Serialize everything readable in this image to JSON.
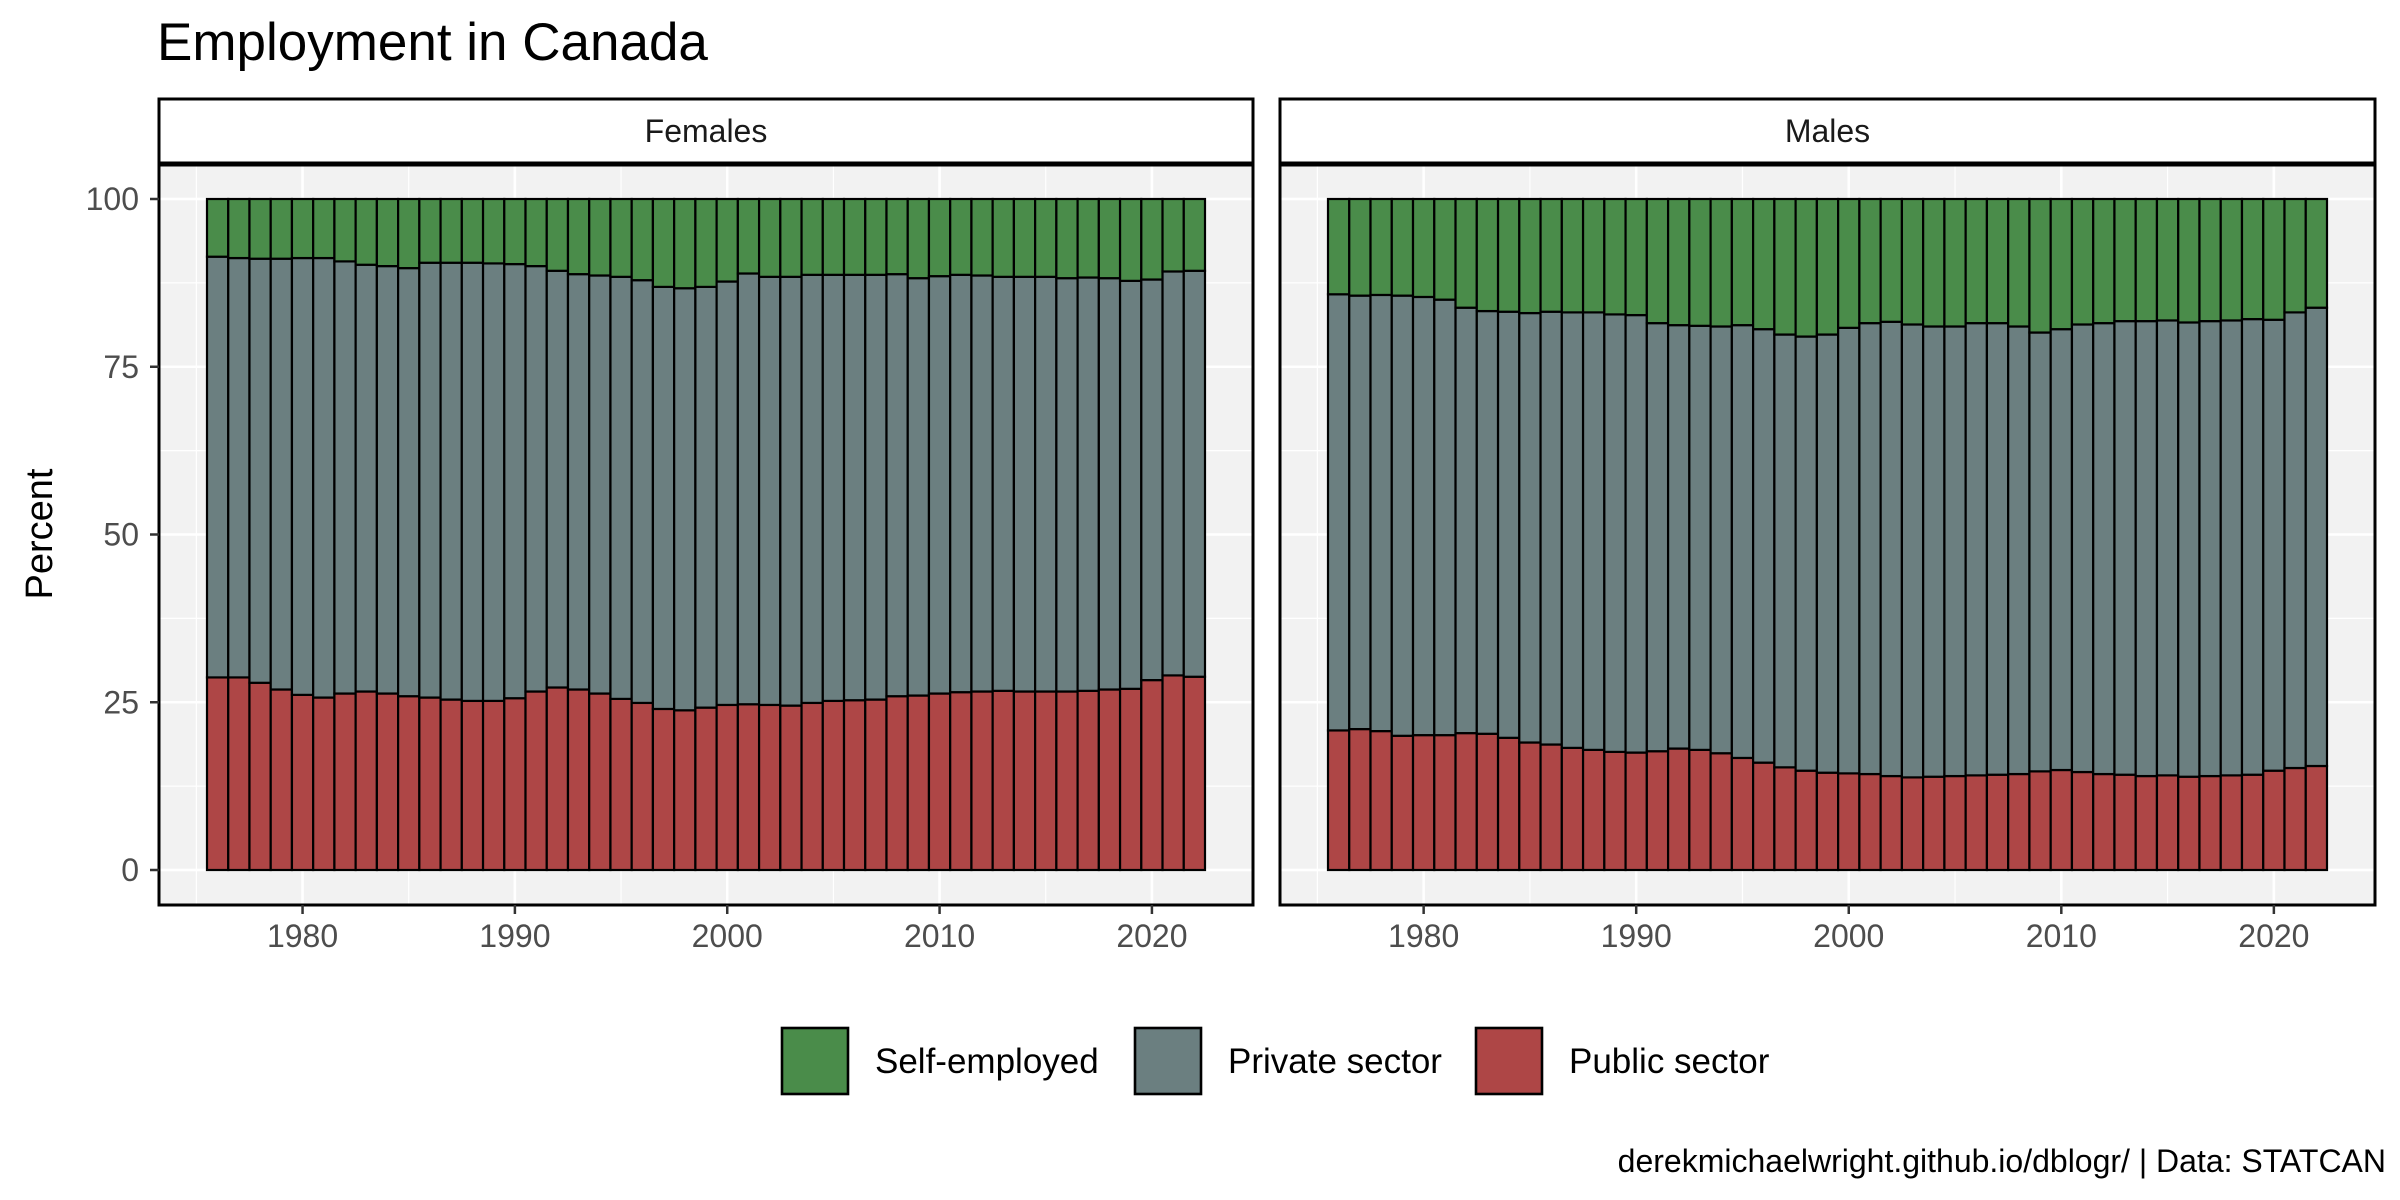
{
  "title": "Employment in Canada",
  "caption": "derekmichaelwright.github.io/dblogr/ | Data: STATCAN",
  "chart_data": {
    "type": "bar",
    "stacked": true,
    "title": "Employment in Canada",
    "xlabel": "",
    "ylabel": "Percent",
    "ylim": [
      0,
      100
    ],
    "yticks": [
      0,
      25,
      50,
      75,
      100
    ],
    "xlim": [
      1976,
      2022
    ],
    "xticks": [
      1980,
      1990,
      2000,
      2010,
      2020
    ],
    "grid": true,
    "legend_position": "bottom",
    "years": [
      1976,
      1977,
      1978,
      1979,
      1980,
      1981,
      1982,
      1983,
      1984,
      1985,
      1986,
      1987,
      1988,
      1989,
      1990,
      1991,
      1992,
      1993,
      1994,
      1995,
      1996,
      1997,
      1998,
      1999,
      2000,
      2001,
      2002,
      2003,
      2004,
      2005,
      2006,
      2007,
      2008,
      2009,
      2010,
      2011,
      2012,
      2013,
      2014,
      2015,
      2016,
      2017,
      2018,
      2019,
      2020,
      2021,
      2022
    ],
    "stack_order": [
      "Public sector",
      "Private sector",
      "Self-employed"
    ],
    "legend": [
      {
        "name": "Self-employed",
        "color": "#4a8c4a"
      },
      {
        "name": "Private sector",
        "color": "#6b7f80"
      },
      {
        "name": "Public sector",
        "color": "#ae4646"
      }
    ],
    "panels": [
      {
        "name": "Females",
        "series": [
          {
            "name": "Public sector",
            "color": "#ae4646",
            "values": [
              28.7,
              28.7,
              27.9,
              26.9,
              26.1,
              25.7,
              26.3,
              26.6,
              26.3,
              25.9,
              25.7,
              25.4,
              25.2,
              25.2,
              25.6,
              26.6,
              27.2,
              26.9,
              26.3,
              25.5,
              24.9,
              24.0,
              23.8,
              24.2,
              24.6,
              24.7,
              24.6,
              24.5,
              24.9,
              25.2,
              25.3,
              25.4,
              25.9,
              26.0,
              26.3,
              26.5,
              26.6,
              26.7,
              26.6,
              26.6,
              26.6,
              26.7,
              26.9,
              27.0,
              28.3,
              29.0,
              28.8
            ]
          },
          {
            "name": "Private sector",
            "color": "#6b7f80",
            "values": [
              62.7,
              62.5,
              63.2,
              64.2,
              65.1,
              65.5,
              64.4,
              63.6,
              63.7,
              63.8,
              64.8,
              65.1,
              65.3,
              65.2,
              64.7,
              63.4,
              62.1,
              61.9,
              62.3,
              62.9,
              63.0,
              62.9,
              62.9,
              62.7,
              63.1,
              64.2,
              63.8,
              63.9,
              63.8,
              63.5,
              63.4,
              63.3,
              62.9,
              62.2,
              62.2,
              62.2,
              62.0,
              61.7,
              61.8,
              61.8,
              61.6,
              61.6,
              61.3,
              60.8,
              59.7,
              60.2,
              60.5
            ]
          },
          {
            "name": "Self-employed",
            "color": "#4a8c4a",
            "values": [
              8.6,
              8.8,
              8.9,
              8.9,
              8.8,
              8.8,
              9.3,
              9.8,
              10.0,
              10.3,
              9.5,
              9.5,
              9.5,
              9.6,
              9.7,
              10.0,
              10.7,
              11.2,
              11.4,
              11.6,
              12.1,
              13.1,
              13.3,
              13.1,
              12.3,
              11.1,
              11.6,
              11.6,
              11.3,
              11.3,
              11.3,
              11.3,
              11.2,
              11.8,
              11.5,
              11.3,
              11.4,
              11.6,
              11.6,
              11.6,
              11.8,
              11.7,
              11.8,
              12.2,
              12.0,
              10.8,
              10.7
            ]
          }
        ]
      },
      {
        "name": "Males",
        "series": [
          {
            "name": "Public sector",
            "color": "#ae4646",
            "values": [
              20.8,
              21.0,
              20.7,
              20.0,
              20.1,
              20.1,
              20.4,
              20.3,
              19.7,
              19.0,
              18.7,
              18.2,
              17.9,
              17.6,
              17.5,
              17.7,
              18.1,
              17.9,
              17.4,
              16.7,
              16.0,
              15.3,
              14.8,
              14.5,
              14.4,
              14.3,
              14.0,
              13.8,
              13.9,
              14.0,
              14.1,
              14.2,
              14.3,
              14.7,
              14.9,
              14.6,
              14.3,
              14.2,
              14.0,
              14.1,
              13.9,
              14.0,
              14.1,
              14.2,
              14.8,
              15.2,
              15.5
            ]
          },
          {
            "name": "Private sector",
            "color": "#6b7f80",
            "values": [
              65.0,
              64.6,
              65.0,
              65.6,
              65.3,
              64.9,
              63.4,
              63.0,
              63.5,
              64.0,
              64.5,
              64.9,
              65.2,
              65.2,
              65.2,
              63.8,
              63.1,
              63.2,
              63.6,
              64.5,
              64.6,
              64.5,
              64.7,
              65.3,
              66.4,
              67.2,
              67.7,
              67.5,
              67.1,
              67.0,
              67.4,
              67.3,
              66.7,
              65.4,
              65.7,
              66.7,
              67.2,
              67.6,
              67.8,
              67.8,
              67.7,
              67.8,
              67.8,
              67.9,
              67.2,
              67.9,
              68.3
            ]
          },
          {
            "name": "Self-employed",
            "color": "#4a8c4a",
            "values": [
              14.2,
              14.4,
              14.3,
              14.4,
              14.6,
              15.0,
              16.2,
              16.7,
              16.8,
              17.0,
              16.8,
              16.9,
              16.9,
              17.2,
              17.3,
              18.5,
              18.8,
              18.9,
              19.0,
              18.8,
              19.4,
              20.2,
              20.5,
              20.2,
              19.2,
              18.5,
              18.3,
              18.7,
              19.0,
              19.0,
              18.5,
              18.5,
              19.0,
              19.9,
              19.4,
              18.7,
              18.5,
              18.2,
              18.2,
              18.1,
              18.4,
              18.2,
              18.1,
              17.9,
              18.0,
              16.9,
              16.2
            ]
          }
        ]
      }
    ]
  }
}
